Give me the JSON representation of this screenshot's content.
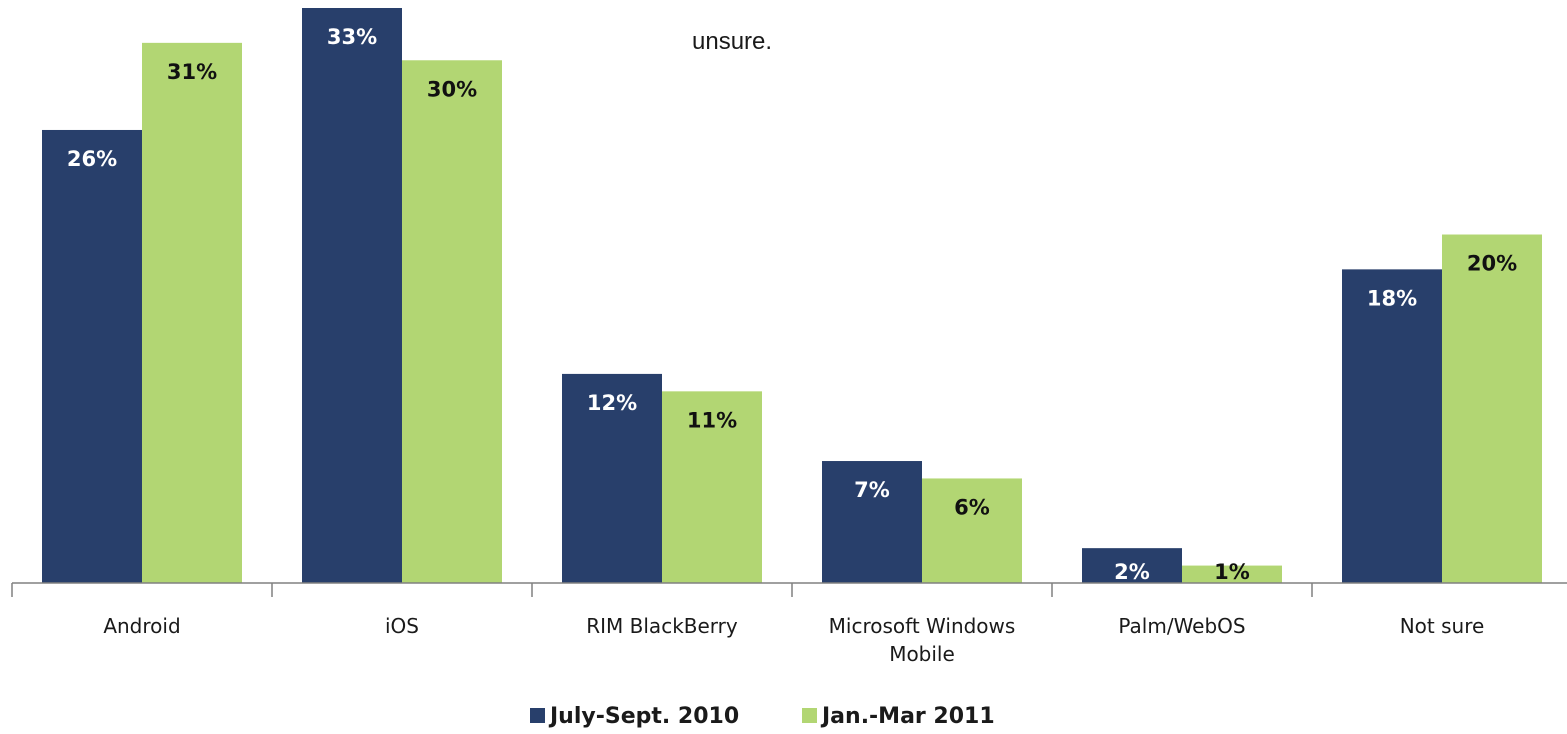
{
  "page": {
    "note_text": "unsure."
  },
  "chart_data": {
    "type": "bar",
    "categories": [
      [
        "Android"
      ],
      [
        "iOS"
      ],
      [
        "RIM BlackBerry"
      ],
      [
        "Microsoft Windows",
        "Mobile"
      ],
      [
        "Palm/WebOS"
      ],
      [
        "Not sure"
      ]
    ],
    "series": [
      {
        "name": "July-Sept. 2010",
        "color": "#283f6b",
        "label_color": "#ffffff",
        "values": [
          26,
          33,
          12,
          7,
          2,
          18
        ]
      },
      {
        "name": "Jan.-Mar 2011",
        "color": "#b2d673",
        "label_color": "#111111",
        "values": [
          31,
          30,
          11,
          6,
          1,
          20
        ]
      }
    ],
    "value_suffix": "%",
    "ylim": [
      0,
      33
    ],
    "grid": false,
    "legend_position": "bottom-center"
  }
}
